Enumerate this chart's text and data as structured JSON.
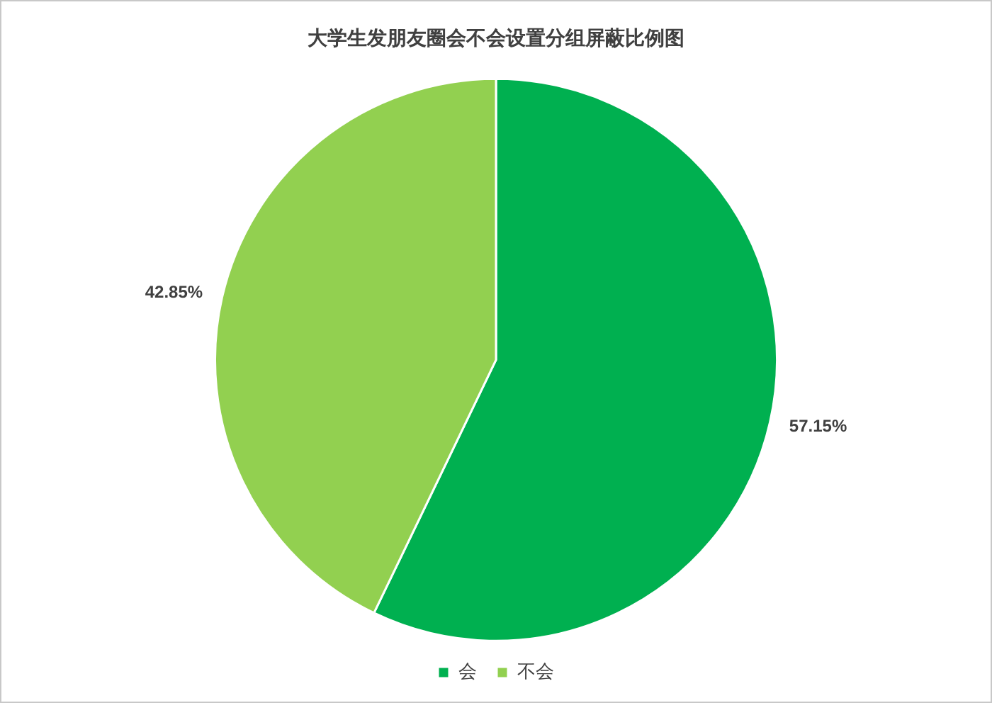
{
  "chart_data": {
    "type": "pie",
    "title": "大学生发朋友圈会不会设置分组屏蔽比例图",
    "categories": [
      "会",
      "不会"
    ],
    "values": [
      57.15,
      42.85
    ],
    "colors": [
      "#00b050",
      "#92d050"
    ],
    "value_labels": [
      "57.15%",
      "42.85%"
    ],
    "legend": "bottom"
  }
}
